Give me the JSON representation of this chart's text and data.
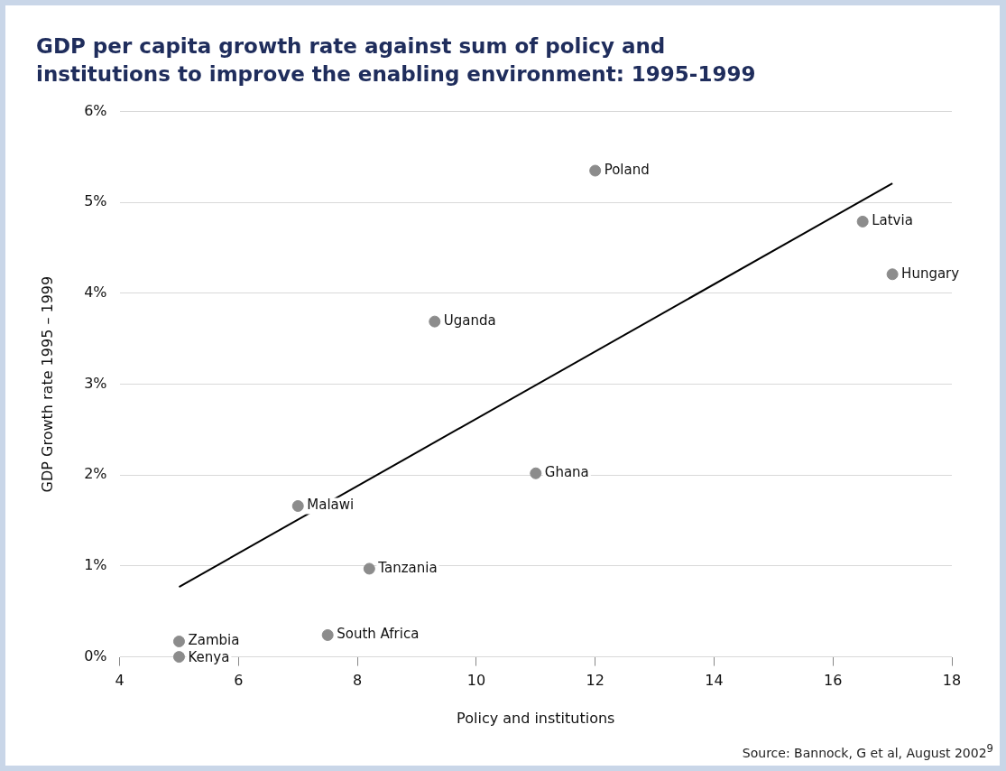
{
  "chart_data": {
    "type": "scatter",
    "title": "GDP per capita growth rate against sum of policy and institutions to improve the enabling environment: 1995-1999",
    "xlabel": "Policy and institutions",
    "ylabel": "GDP Growth rate 1995 – 1999",
    "series": [
      {
        "marker": "circle",
        "color": "#8c8c8c",
        "x": [
          12.0,
          16.5,
          17.0,
          9.3,
          11.0,
          7.0,
          8.2,
          7.5,
          5.0,
          5.0
        ],
        "values": [
          5.35,
          4.79,
          4.21,
          3.69,
          2.02,
          1.66,
          0.97,
          0.24,
          0.17,
          0.0
        ]
      },
      {
        "type": "line",
        "color": "#000000",
        "x": [
          5.0,
          17.0
        ],
        "values": [
          0.77,
          5.21
        ]
      }
    ],
    "xlim": [
      4,
      18
    ],
    "xticks": [
      4,
      6,
      8,
      10,
      12,
      14,
      16,
      18
    ],
    "ylim": [
      0,
      6
    ],
    "yticks": [
      {
        "value": 0,
        "label": "0%"
      },
      {
        "value": 1,
        "label": "1%"
      },
      {
        "value": 2,
        "label": "2%"
      },
      {
        "value": 3,
        "label": "3%"
      },
      {
        "value": 4,
        "label": "4%"
      },
      {
        "value": 5,
        "label": "5%"
      },
      {
        "value": 6,
        "label": "6%"
      }
    ],
    "grid": "y",
    "legend": false,
    "annotations": [
      {
        "text": "Poland",
        "x": 12.0,
        "y": 5.35
      },
      {
        "text": "Latvia",
        "x": 16.5,
        "y": 4.79
      },
      {
        "text": "Hungary",
        "x": 17.0,
        "y": 4.21
      },
      {
        "text": "Uganda",
        "x": 9.3,
        "y": 3.69
      },
      {
        "text": "Ghana",
        "x": 11.0,
        "y": 2.02
      },
      {
        "text": "Malawi",
        "x": 7.0,
        "y": 1.66
      },
      {
        "text": "Tanzania",
        "x": 8.2,
        "y": 0.97
      },
      {
        "text": "South Africa",
        "x": 7.5,
        "y": 0.24
      },
      {
        "text": "Zambia",
        "x": 5.0,
        "y": 0.17
      },
      {
        "text": "Kenya",
        "x": 5.0,
        "y": 0.0
      },
      "Source: Bannock, G et al, August 2002$^{9}$"
    ]
  }
}
